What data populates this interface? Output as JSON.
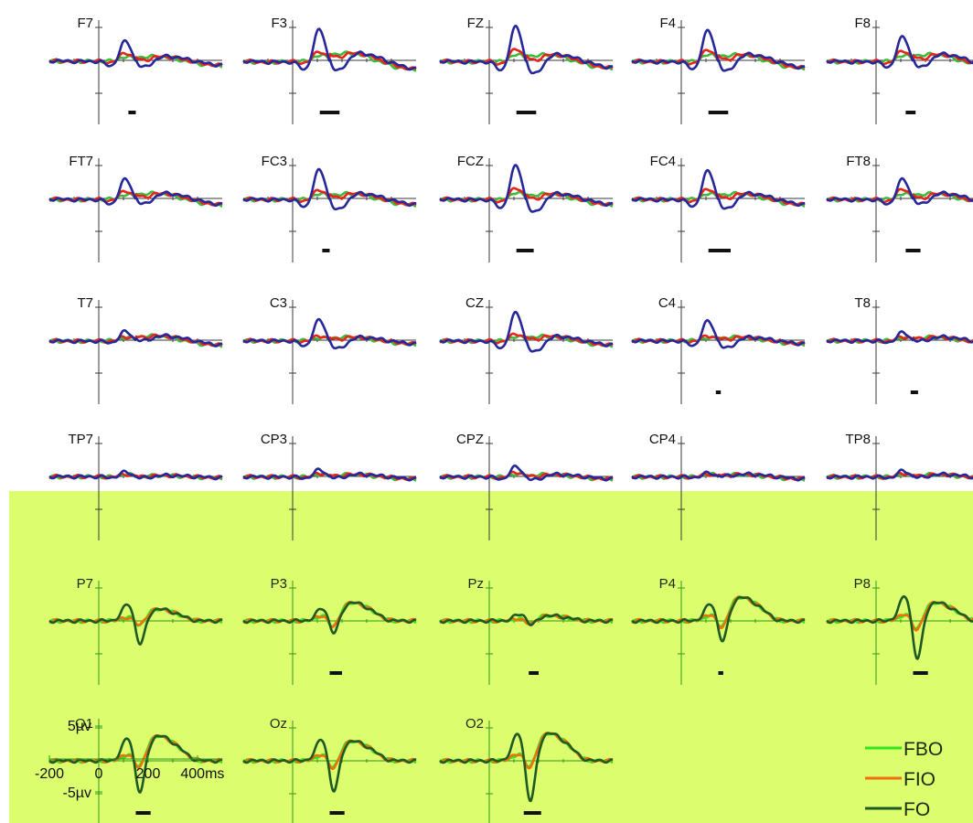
{
  "colors": {
    "top_bg": "#ffffff",
    "bottom_bg": "#dbfd6e",
    "top_axis": "#3a3a3a",
    "bottom_axis": "#2f9a1a",
    "top_blue": "#26289a",
    "top_red": "#e8241c",
    "top_green": "#3dbb3d",
    "bottom_fbo": "#33e51d",
    "bottom_fio": "#f1700e",
    "bottom_fo": "#1e5a24",
    "sig_bar": "#111111"
  },
  "time_axis_ms": [
    -200,
    500
  ],
  "chart_data": {
    "type": "line",
    "panels": [
      {
        "label": "F7",
        "amp": [
          0.9,
          0.35,
          0.15
        ],
        "late": 0.2,
        "sig": [
          120,
          150
        ]
      },
      {
        "label": "F3",
        "amp": [
          1.45,
          0.4,
          0.2
        ],
        "late": 0.35,
        "sig": [
          110,
          190
        ]
      },
      {
        "label": "FZ",
        "amp": [
          1.6,
          0.55,
          0.25
        ],
        "late": 0.3,
        "sig": [
          110,
          190
        ]
      },
      {
        "label": "F4",
        "amp": [
          1.4,
          0.5,
          0.25
        ],
        "late": 0.3,
        "sig": [
          110,
          190
        ]
      },
      {
        "label": "F8",
        "amp": [
          1.1,
          0.45,
          0.2
        ],
        "late": 0.3,
        "sig": [
          120,
          160
        ]
      },
      {
        "label": "FT7",
        "amp": [
          0.9,
          0.35,
          0.15
        ],
        "late": 0.25,
        "sig": null
      },
      {
        "label": "FC3",
        "amp": [
          1.35,
          0.4,
          0.2
        ],
        "late": 0.25,
        "sig": [
          120,
          150
        ]
      },
      {
        "label": "FCZ",
        "amp": [
          1.55,
          0.5,
          0.25
        ],
        "late": 0.25,
        "sig": [
          110,
          180
        ]
      },
      {
        "label": "FC4",
        "amp": [
          1.3,
          0.45,
          0.2
        ],
        "late": 0.25,
        "sig": [
          110,
          200
        ]
      },
      {
        "label": "FT8",
        "amp": [
          0.9,
          0.45,
          0.2
        ],
        "late": 0.25,
        "sig": [
          120,
          180
        ]
      },
      {
        "label": "T7",
        "amp": [
          0.4,
          0.15,
          0.1
        ],
        "late": 0.2,
        "sig": null
      },
      {
        "label": "C3",
        "amp": [
          0.95,
          0.2,
          0.1
        ],
        "late": 0.15,
        "sig": null
      },
      {
        "label": "CZ",
        "amp": [
          1.3,
          0.3,
          0.15
        ],
        "late": 0.2,
        "sig": null
      },
      {
        "label": "C4",
        "amp": [
          0.9,
          0.2,
          0.1
        ],
        "late": 0.15,
        "sig": [
          140,
          160
        ]
      },
      {
        "label": "T8",
        "amp": [
          0.35,
          0.15,
          0.1
        ],
        "late": 0.15,
        "sig": [
          140,
          170
        ]
      },
      {
        "label": "TP7",
        "amp": [
          0.2,
          0.1,
          0.1
        ],
        "late": 0.05,
        "sig": null
      },
      {
        "label": "CP3",
        "amp": [
          0.3,
          0.15,
          0.1
        ],
        "late": 0.1,
        "sig": null
      },
      {
        "label": "CPZ",
        "amp": [
          0.45,
          0.2,
          0.1
        ],
        "late": 0.1,
        "sig": null
      },
      {
        "label": "CP4",
        "amp": [
          0.15,
          0.1,
          0.1
        ],
        "late": 0.1,
        "sig": null
      },
      {
        "label": "TP8",
        "amp": [
          0.25,
          0.15,
          0.1
        ],
        "late": 0.1,
        "sig": null
      },
      {
        "label": "P7",
        "amp": [
          1.3,
          0.3,
          0.3
        ],
        "late": 0.45,
        "sig": null
      },
      {
        "label": "P3",
        "amp": [
          0.9,
          0.45,
          0.4
        ],
        "late": 0.7,
        "sig": [
          150,
          200
        ]
      },
      {
        "label": "Pz",
        "amp": [
          0.4,
          0.2,
          0.15
        ],
        "late": 0.2,
        "sig": [
          160,
          200
        ]
      },
      {
        "label": "P4",
        "amp": [
          1.3,
          0.55,
          0.45
        ],
        "late": 0.9,
        "sig": [
          150,
          170
        ]
      },
      {
        "label": "P8",
        "amp": [
          2.0,
          0.6,
          0.5
        ],
        "late": 0.7,
        "sig": [
          150,
          210
        ]
      },
      {
        "label": "O1",
        "amp": [
          1.8,
          0.55,
          0.45
        ],
        "late": 0.95,
        "sig": [
          150,
          210
        ]
      },
      {
        "label": "Oz",
        "amp": [
          1.7,
          0.55,
          0.45
        ],
        "late": 0.75,
        "sig": [
          150,
          210
        ]
      },
      {
        "label": "O2",
        "amp": [
          2.2,
          0.6,
          0.5
        ],
        "late": 1.05,
        "sig": [
          140,
          210
        ]
      }
    ],
    "scale_bar": {
      "y_top_label": "5µv",
      "y_bottom_label": "-5µv",
      "x_ticks": [
        "-200",
        "0",
        "200",
        "400ms"
      ]
    },
    "legend": [
      {
        "name": "FBO",
        "color": "#33e51d"
      },
      {
        "name": "FIO",
        "color": "#f1700e"
      },
      {
        "name": "FO",
        "color": "#1e5a24"
      }
    ]
  }
}
